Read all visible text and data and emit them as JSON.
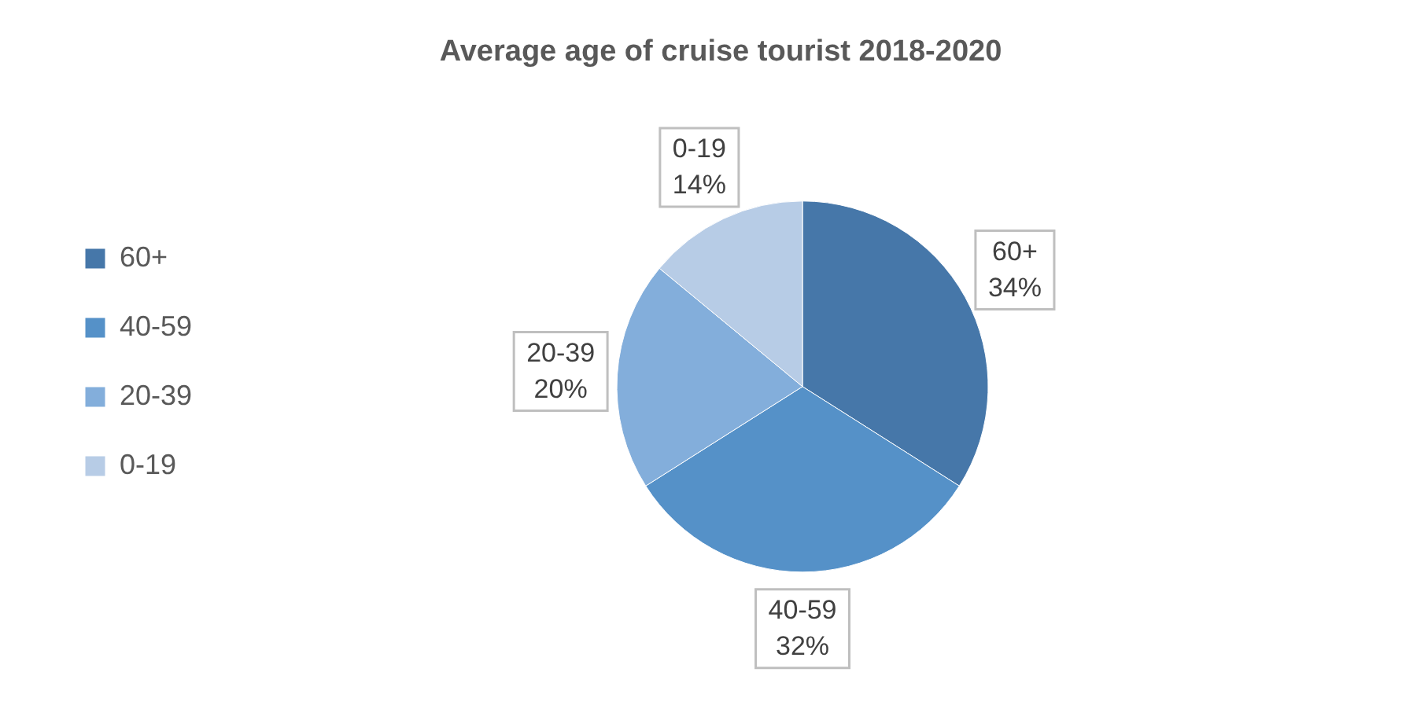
{
  "chart_data": {
    "type": "pie",
    "title": "Average age of cruise tourist 2018-2020",
    "categories": [
      "60+",
      "40-59",
      "20-39",
      "0-19"
    ],
    "values": [
      34,
      32,
      20,
      14
    ],
    "value_labels": [
      "34%",
      "32%",
      "20%",
      "14%"
    ],
    "colors": [
      "#4677a9",
      "#5591c8",
      "#83aedb",
      "#b7cce6"
    ],
    "data_labels": true,
    "legend": "left"
  }
}
